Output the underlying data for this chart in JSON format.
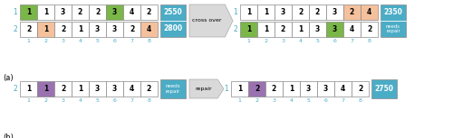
{
  "panel_a": {
    "left": {
      "row1": {
        "values": [
          1,
          1,
          3,
          2,
          2,
          3,
          4,
          2
        ],
        "colors": [
          "#7ab648",
          "white",
          "white",
          "white",
          "white",
          "#7ab648",
          "white",
          "white"
        ],
        "label": "1",
        "score": "2550"
      },
      "row2": {
        "values": [
          2,
          1,
          2,
          1,
          3,
          3,
          2,
          4
        ],
        "colors": [
          "white",
          "#f4c19c",
          "white",
          "white",
          "white",
          "white",
          "white",
          "#f4c19c"
        ],
        "label": "2",
        "score": "2800"
      }
    },
    "right": {
      "row1": {
        "values": [
          1,
          1,
          3,
          2,
          2,
          3,
          2,
          4
        ],
        "colors": [
          "white",
          "white",
          "white",
          "white",
          "white",
          "white",
          "#f4c19c",
          "#f4c19c"
        ],
        "label": "1",
        "score": "2350",
        "score2": "needs\nrepair"
      },
      "row2": {
        "values": [
          1,
          1,
          2,
          1,
          3,
          3,
          4,
          2
        ],
        "colors": [
          "#7ab648",
          "white",
          "white",
          "white",
          "white",
          "#7ab648",
          "white",
          "white"
        ],
        "label": "2"
      }
    }
  },
  "panel_b": {
    "left": {
      "row1": {
        "values": [
          1,
          1,
          2,
          1,
          3,
          3,
          4,
          2
        ],
        "colors": [
          "white",
          "#9b72b0",
          "white",
          "white",
          "white",
          "white",
          "white",
          "white"
        ],
        "label": "2"
      }
    },
    "right": {
      "row1": {
        "values": [
          1,
          2,
          2,
          1,
          3,
          3,
          4,
          2
        ],
        "colors": [
          "white",
          "#9b72b0",
          "white",
          "white",
          "white",
          "white",
          "white",
          "white"
        ],
        "label": "1",
        "score": "2750"
      }
    }
  },
  "colors": {
    "score_box": "#4bacc6",
    "border": "#888888",
    "label_color": "#4bacc6",
    "tick_color": "#4bacc6",
    "arrow_face": "#d9d9d9",
    "arrow_edge": "#aaaaaa"
  }
}
